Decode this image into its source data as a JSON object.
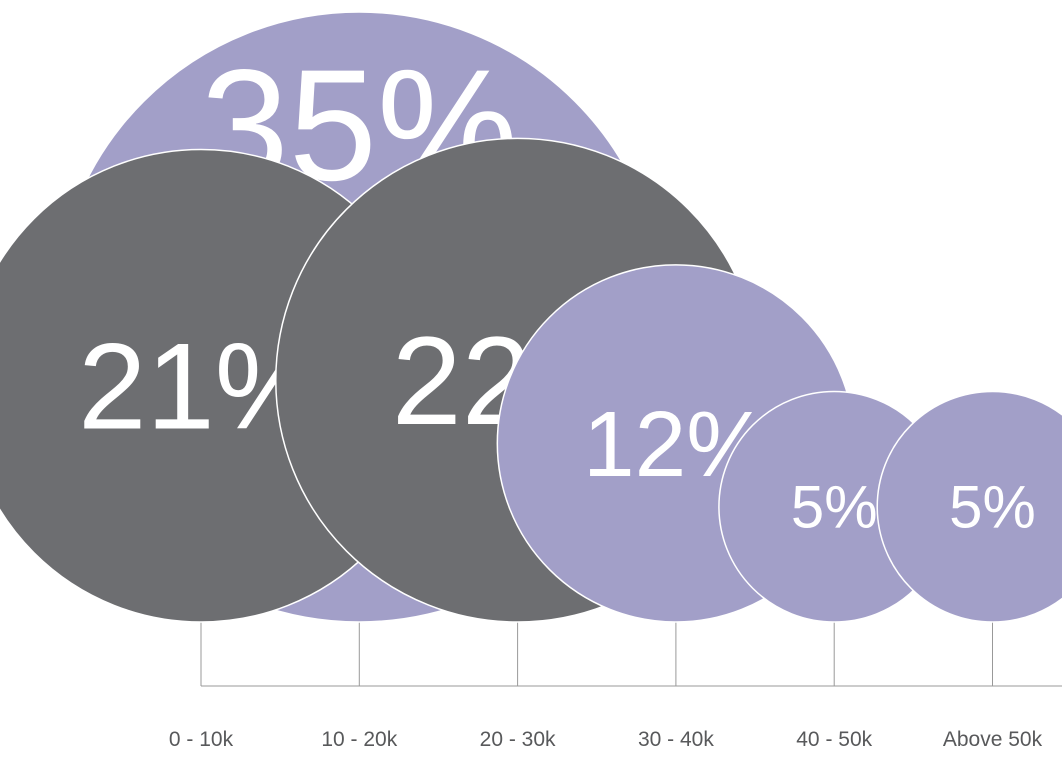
{
  "chart_data": {
    "type": "bubble",
    "categories": [
      "0 - 10k",
      "10 - 20k",
      "20 - 30k",
      "30 - 40k",
      "40 - 50k",
      "Above 50k"
    ],
    "values": [
      21,
      35,
      22,
      12,
      5,
      5
    ],
    "labels": [
      "21%",
      "35%",
      "22%",
      "12%",
      "5%",
      "5%"
    ],
    "unit": "%",
    "colors": {
      "purple": "#a29fc8",
      "gray": "#6d6e71",
      "axis": "#999999",
      "label": "#58595b",
      "bubble_text": "#ffffff"
    },
    "bubble_colors": [
      "gray",
      "purple",
      "gray",
      "purple",
      "purple",
      "purple"
    ],
    "grid": false,
    "legend": "none"
  }
}
